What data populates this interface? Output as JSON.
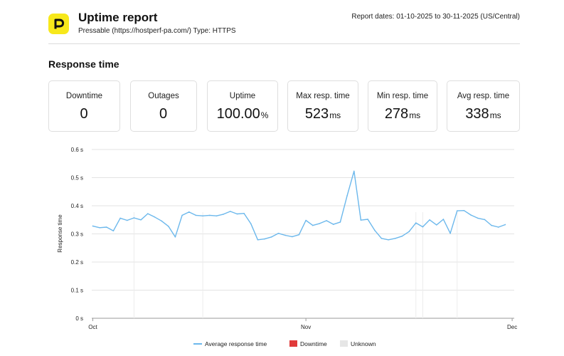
{
  "header": {
    "title": "Uptime report",
    "subtitle": "Pressable (https://hostperf-pa.com/) Type: HTTPS",
    "dates": "Report dates: 01-10-2025 to 30-11-2025 (US/Central)",
    "logo_icon": "pressable-p-logo",
    "logo_color": "#f7e81b"
  },
  "section_title": "Response time",
  "stats": [
    {
      "label": "Downtime",
      "value": "0",
      "unit": ""
    },
    {
      "label": "Outages",
      "value": "0",
      "unit": ""
    },
    {
      "label": "Uptime",
      "value": "100.00",
      "unit": "%"
    },
    {
      "label": "Max resp. time",
      "value": "523",
      "unit": "ms"
    },
    {
      "label": "Min resp. time",
      "value": "278",
      "unit": "ms"
    },
    {
      "label": "Avg resp. time",
      "value": "338",
      "unit": "ms"
    }
  ],
  "chart_data": {
    "type": "line",
    "ylabel": "Response time",
    "ylim": [
      0,
      0.6
    ],
    "yticks": [
      "0 s",
      "0.1 s",
      "0.2 s",
      "0.3 s",
      "0.4 s",
      "0.5 s",
      "0.6 s"
    ],
    "xticks": [
      "Oct",
      "Nov",
      "Dec"
    ],
    "grid": true,
    "legend_position": "bottom",
    "line_color": "#6cb8ec",
    "series": [
      {
        "name": "Average response time",
        "x": [
          "2025-10-01",
          "2025-10-02",
          "2025-10-03",
          "2025-10-04",
          "2025-10-05",
          "2025-10-06",
          "2025-10-07",
          "2025-10-08",
          "2025-10-09",
          "2025-10-10",
          "2025-10-11",
          "2025-10-12",
          "2025-10-13",
          "2025-10-14",
          "2025-10-15",
          "2025-10-16",
          "2025-10-17",
          "2025-10-18",
          "2025-10-19",
          "2025-10-20",
          "2025-10-21",
          "2025-10-22",
          "2025-10-23",
          "2025-10-24",
          "2025-10-25",
          "2025-10-26",
          "2025-10-27",
          "2025-10-28",
          "2025-10-29",
          "2025-10-30",
          "2025-10-31",
          "2025-11-01",
          "2025-11-02",
          "2025-11-03",
          "2025-11-04",
          "2025-11-05",
          "2025-11-06",
          "2025-11-07",
          "2025-11-08",
          "2025-11-09",
          "2025-11-10",
          "2025-11-11",
          "2025-11-12",
          "2025-11-13",
          "2025-11-14",
          "2025-11-15",
          "2025-11-16",
          "2025-11-17",
          "2025-11-18",
          "2025-11-19",
          "2025-11-20",
          "2025-11-21",
          "2025-11-22",
          "2025-11-23",
          "2025-11-24",
          "2025-11-25",
          "2025-11-26",
          "2025-11-27",
          "2025-11-28",
          "2025-11-29",
          "2025-11-30"
        ],
        "values": [
          0.328,
          0.322,
          0.324,
          0.311,
          0.356,
          0.348,
          0.357,
          0.35,
          0.372,
          0.36,
          0.346,
          0.327,
          0.289,
          0.366,
          0.378,
          0.366,
          0.364,
          0.366,
          0.364,
          0.37,
          0.38,
          0.371,
          0.373,
          0.336,
          0.279,
          0.282,
          0.289,
          0.302,
          0.295,
          0.29,
          0.297,
          0.348,
          0.33,
          0.337,
          0.347,
          0.334,
          0.342,
          0.436,
          0.523,
          0.349,
          0.352,
          0.313,
          0.284,
          0.279,
          0.284,
          0.292,
          0.308,
          0.339,
          0.325,
          0.35,
          0.332,
          0.352,
          0.302,
          0.382,
          0.383,
          0.367,
          0.356,
          0.351,
          0.33,
          0.324,
          0.333
        ]
      },
      {
        "name": "Downtime",
        "color": "#e03a3a"
      },
      {
        "name": "Unknown",
        "color": "#e6e6e6"
      }
    ]
  }
}
